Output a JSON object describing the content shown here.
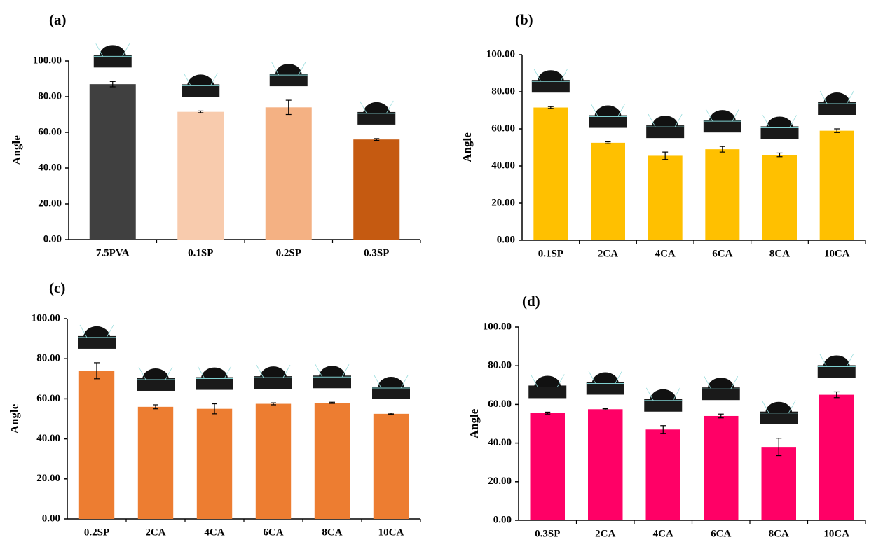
{
  "chart_data": [
    {
      "type": "bar",
      "label": "(a)",
      "y_label": "Angle",
      "categories": [
        "7.5PVA",
        "0.1SP",
        "0.2SP",
        "0.3SP"
      ],
      "values": [
        87,
        71.5,
        74,
        56
      ],
      "errors": [
        1.5,
        0.5,
        4,
        0.5
      ],
      "colors": [
        "#404040",
        "#f8cbad",
        "#f4b183",
        "#c55a11"
      ],
      "ylim": [
        0,
        100
      ],
      "yticks": [
        {
          "value": 0,
          "label": "0.00"
        },
        {
          "value": 20,
          "label": "20.00"
        },
        {
          "value": 40,
          "label": "40.00"
        },
        {
          "value": 60,
          "label": "60.00"
        },
        {
          "value": 80,
          "label": "80.00"
        },
        {
          "value": 100,
          "label": "100.00"
        }
      ]
    },
    {
      "type": "bar",
      "label": "(b)",
      "y_label": "Angle",
      "categories": [
        "0.1SP",
        "2CA",
        "4CA",
        "6CA",
        "8CA",
        "10CA"
      ],
      "values": [
        71.5,
        52.5,
        45.5,
        49,
        46,
        59
      ],
      "errors": [
        0.5,
        0.5,
        2,
        1.5,
        1,
        1
      ],
      "color": "#ffc000",
      "ylim": [
        0,
        100
      ],
      "yticks": [
        {
          "value": 0,
          "label": "0.00"
        },
        {
          "value": 20,
          "label": "20.00"
        },
        {
          "value": 40,
          "label": "40.00"
        },
        {
          "value": 60,
          "label": "60.00"
        },
        {
          "value": 80,
          "label": "80.00"
        },
        {
          "value": 100,
          "label": "100.00"
        }
      ]
    },
    {
      "type": "bar",
      "label": "(c)",
      "y_label": "Angle",
      "categories": [
        "0.2SP",
        "2CA",
        "4CA",
        "6CA",
        "8CA",
        "10CA"
      ],
      "values": [
        74,
        56,
        55,
        57.5,
        58,
        52.5
      ],
      "errors": [
        4,
        1,
        2.5,
        0.5,
        0.3,
        0.3
      ],
      "color": "#ed7d31",
      "ylim": [
        0,
        100
      ],
      "yticks": [
        {
          "value": 0,
          "label": "0.00"
        },
        {
          "value": 20,
          "label": "20.00"
        },
        {
          "value": 40,
          "label": "40.00"
        },
        {
          "value": 60,
          "label": "60.00"
        },
        {
          "value": 80,
          "label": "80.00"
        },
        {
          "value": 100,
          "label": "100.00"
        }
      ]
    },
    {
      "type": "bar",
      "label": "(d)",
      "y_label": "Angle",
      "categories": [
        "0.3SP",
        "2CA",
        "4CA",
        "6CA",
        "8CA",
        "10CA"
      ],
      "values": [
        55.5,
        57.5,
        47,
        54,
        38,
        65
      ],
      "errors": [
        0.5,
        0.3,
        2,
        1,
        4.5,
        1.5
      ],
      "color": "#ff0066",
      "ylim": [
        0,
        100
      ],
      "yticks": [
        {
          "value": 0,
          "label": "0.00"
        },
        {
          "value": 20,
          "label": "20.00"
        },
        {
          "value": 40,
          "label": "40.00"
        },
        {
          "value": 60,
          "label": "60.00"
        },
        {
          "value": 80,
          "label": "80.00"
        },
        {
          "value": 100,
          "label": "100.00"
        }
      ]
    }
  ]
}
